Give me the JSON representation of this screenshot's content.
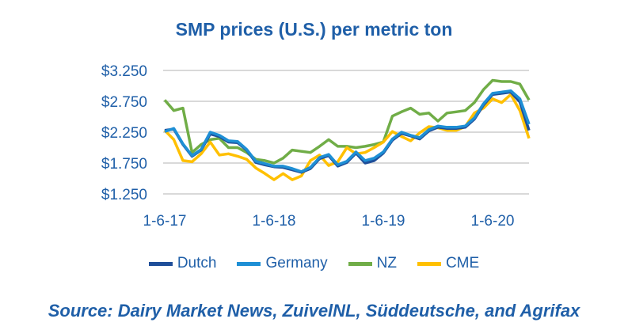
{
  "chart_data": {
    "type": "line",
    "title": "SMP prices (U.S.) per metric ton",
    "source": "Source: Dairy Market News, ZuivelNL, Süddeutsche, and Agrifax",
    "x": [
      "2017-01",
      "2017-02",
      "2017-03",
      "2017-04",
      "2017-05",
      "2017-06",
      "2017-07",
      "2017-08",
      "2017-09",
      "2017-10",
      "2017-11",
      "2017-12",
      "2018-01",
      "2018-02",
      "2018-03",
      "2018-04",
      "2018-05",
      "2018-06",
      "2018-07",
      "2018-08",
      "2018-09",
      "2018-10",
      "2018-11",
      "2018-12",
      "2019-01",
      "2019-02",
      "2019-03",
      "2019-04",
      "2019-05",
      "2019-06",
      "2019-07",
      "2019-08",
      "2019-09",
      "2019-10",
      "2019-11",
      "2019-12",
      "2020-01",
      "2020-02",
      "2020-03",
      "2020-04",
      "2020-05"
    ],
    "xticks": [
      {
        "label": "1-6-17",
        "m": 0
      },
      {
        "label": "1-6-18",
        "m": 12
      },
      {
        "label": "1-6-19",
        "m": 24
      },
      {
        "label": "1-6-20",
        "m": 36
      }
    ],
    "yticks": [
      {
        "label": "$1.250",
        "v": 1250
      },
      {
        "label": "$1.750",
        "v": 1750
      },
      {
        "label": "$2.250",
        "v": 2250
      },
      {
        "label": "$2.750",
        "v": 2750
      },
      {
        "label": "$3.250",
        "v": 3250
      }
    ],
    "ylim": [
      1250,
      3250
    ],
    "grid": true,
    "legend_placement": "bottom",
    "series": [
      {
        "name": "Dutch",
        "color": "#1F4E99",
        "values": [
          2280,
          2300,
          2050,
          1860,
          1960,
          2220,
          2180,
          2090,
          2080,
          1960,
          1760,
          1720,
          1690,
          1680,
          1640,
          1600,
          1660,
          1820,
          1870,
          1700,
          1760,
          1910,
          1750,
          1790,
          1910,
          2120,
          2230,
          2190,
          2140,
          2270,
          2330,
          2310,
          2310,
          2330,
          2460,
          2690,
          2860,
          2880,
          2900,
          2740,
          2280
        ]
      },
      {
        "name": "Germany",
        "color": "#1E8FD5",
        "values": [
          2260,
          2310,
          2060,
          1870,
          1970,
          2250,
          2200,
          2110,
          2100,
          1970,
          1780,
          1740,
          1700,
          1700,
          1660,
          1610,
          1680,
          1840,
          1890,
          1720,
          1780,
          1930,
          1790,
          1830,
          1930,
          2140,
          2250,
          2200,
          2160,
          2290,
          2350,
          2330,
          2330,
          2350,
          2480,
          2710,
          2880,
          2900,
          2920,
          2790,
          2380
        ]
      },
      {
        "name": "NZ",
        "color": "#70AD47",
        "values": [
          2770,
          2600,
          2640,
          1920,
          2050,
          2130,
          2150,
          2000,
          2000,
          1920,
          1810,
          1790,
          1750,
          1830,
          1960,
          1940,
          1920,
          2020,
          2130,
          2020,
          2020,
          2000,
          2020,
          2050,
          2090,
          2510,
          2580,
          2640,
          2540,
          2560,
          2430,
          2560,
          2580,
          2600,
          2730,
          2940,
          3090,
          3070,
          3070,
          3030,
          2770
        ]
      },
      {
        "name": "CME",
        "color": "#FFC000",
        "values": [
          2280,
          2130,
          1790,
          1770,
          1900,
          2090,
          1880,
          1900,
          1860,
          1810,
          1670,
          1580,
          1480,
          1580,
          1480,
          1540,
          1790,
          1880,
          1710,
          1770,
          2000,
          1900,
          1920,
          2000,
          2090,
          2260,
          2180,
          2110,
          2240,
          2340,
          2320,
          2280,
          2280,
          2340,
          2560,
          2640,
          2790,
          2730,
          2860,
          2600,
          2150
        ]
      }
    ]
  }
}
